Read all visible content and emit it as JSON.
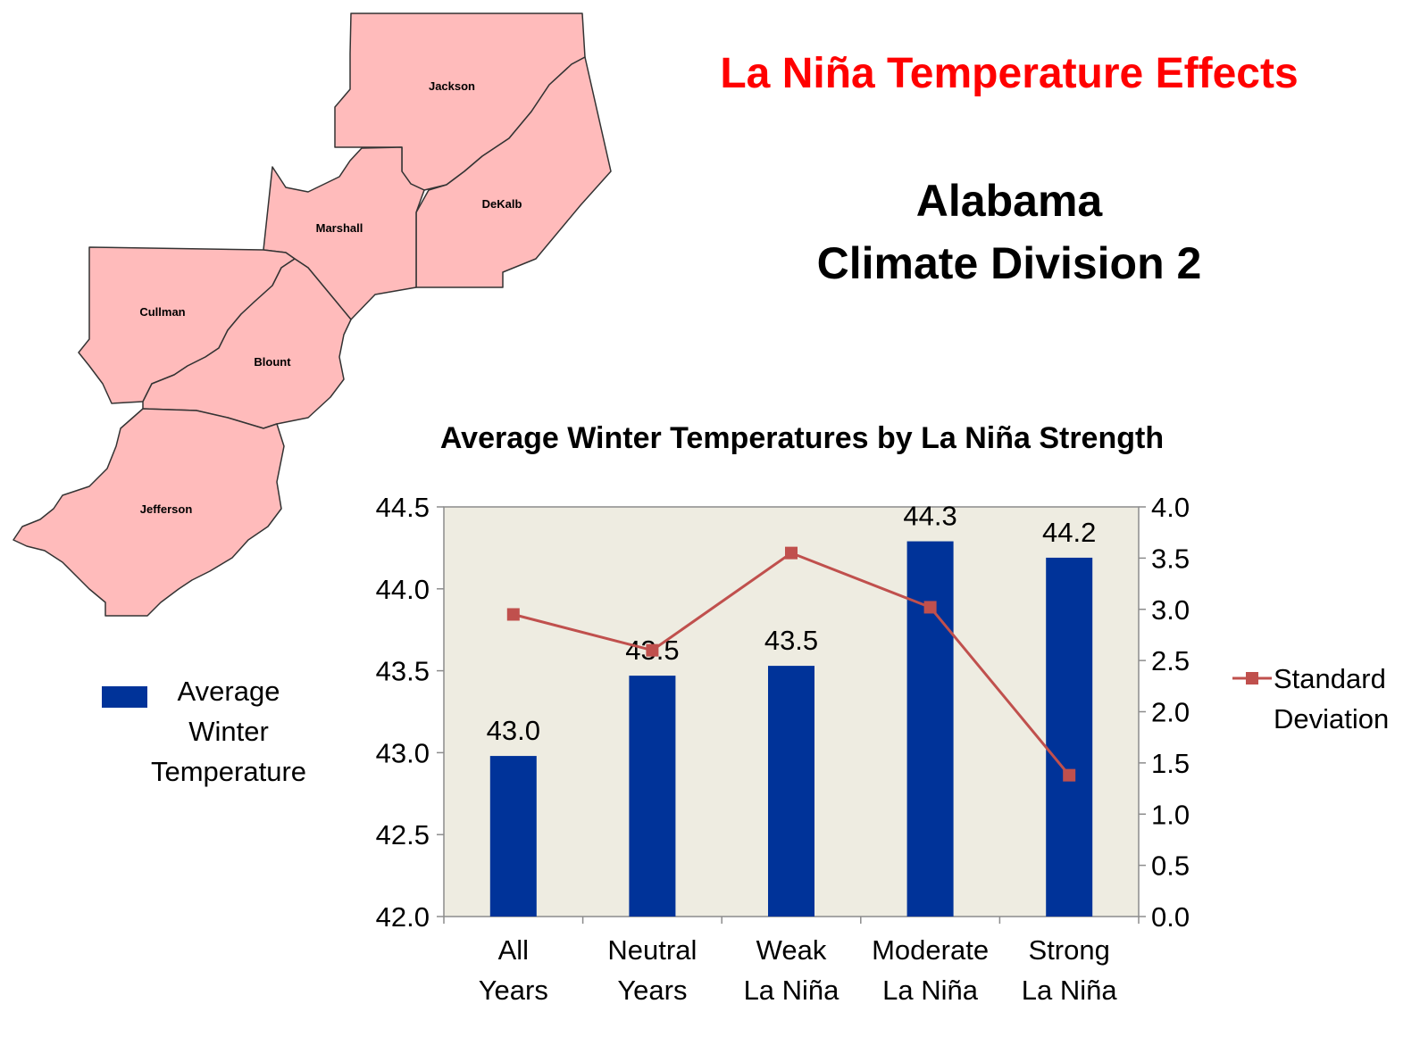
{
  "page_title": "La Niña Temperature Effects",
  "subtitle_line1": "Alabama",
  "subtitle_line2": "Climate Division 2",
  "map": {
    "counties": [
      "Jackson",
      "DeKalb",
      "Marshall",
      "Cullman",
      "Blount",
      "Jefferson"
    ]
  },
  "colors": {
    "title_red": "#ff0000",
    "bar_blue": "#003399",
    "line_red": "#c0504d",
    "plot_bg": "#eeece1",
    "county_fill": "#ffbbbb"
  },
  "chart_data": {
    "type": "bar",
    "title": "Average Winter Temperatures by La Niña Strength",
    "categories": [
      [
        "All",
        "Years"
      ],
      [
        "Neutral",
        "Years"
      ],
      [
        "Weak",
        "La Niña"
      ],
      [
        "Moderate",
        "La Niña"
      ],
      [
        "Strong",
        "La Niña"
      ]
    ],
    "series": [
      {
        "name": "Average Winter Temperature",
        "type": "bar",
        "axis": "left",
        "values": [
          42.98,
          43.47,
          43.53,
          44.29,
          44.19
        ],
        "data_labels": [
          "43.0",
          "43.5",
          "43.5",
          "44.3",
          "44.2"
        ]
      },
      {
        "name": "Standard Deviation",
        "type": "line",
        "axis": "right",
        "values": [
          2.95,
          2.6,
          3.55,
          3.02,
          1.38
        ]
      }
    ],
    "y_left": {
      "lim": [
        42.0,
        44.5
      ],
      "ticks": [
        "42.0",
        "42.5",
        "43.0",
        "43.5",
        "44.0",
        "44.5"
      ]
    },
    "y_right": {
      "lim": [
        0.0,
        4.0
      ],
      "ticks": [
        "0.0",
        "0.5",
        "1.0",
        "1.5",
        "2.0",
        "2.5",
        "3.0",
        "3.5",
        "4.0"
      ]
    },
    "legend_left": [
      "Average",
      "Winter",
      "Temperature"
    ],
    "legend_right": [
      "Standard",
      "Deviation"
    ],
    "grid": false
  }
}
